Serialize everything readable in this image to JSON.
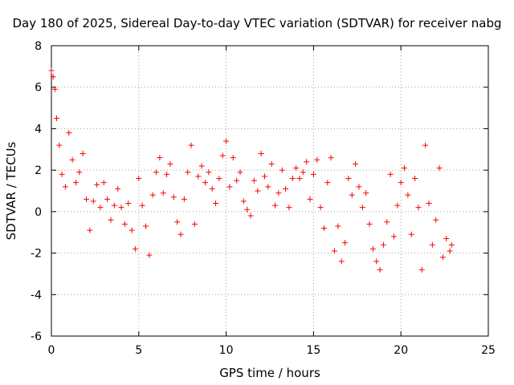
{
  "chart_data": {
    "type": "scatter",
    "title": "Day 180 of 2025, Sidereal Day-to-day VTEC variation (SDTVAR) for receiver nabg",
    "xlabel": "GPS time / hours",
    "ylabel": "SDTVAR / TECUs",
    "xlim": [
      0,
      25
    ],
    "ylim": [
      -6,
      8
    ],
    "xticks": [
      0,
      5,
      10,
      15,
      20,
      25
    ],
    "yticks": [
      -6,
      -4,
      -2,
      0,
      2,
      4,
      6,
      8
    ],
    "grid": true,
    "marker": "+",
    "color": "#ff0000",
    "series": [
      {
        "name": "SDTVAR",
        "x": [
          0.0,
          0.1,
          0.2,
          0.3,
          0.45,
          0.6,
          0.8,
          1.0,
          1.2,
          1.4,
          1.6,
          1.8,
          2.0,
          2.2,
          2.4,
          2.6,
          2.8,
          3.0,
          3.2,
          3.4,
          3.6,
          3.8,
          4.0,
          4.2,
          4.4,
          4.6,
          4.8,
          5.0,
          5.2,
          5.4,
          5.6,
          5.8,
          6.0,
          6.2,
          6.4,
          6.6,
          6.8,
          7.0,
          7.2,
          7.4,
          7.6,
          7.8,
          8.0,
          8.2,
          8.4,
          8.6,
          8.8,
          9.0,
          9.2,
          9.4,
          9.6,
          9.8,
          10.0,
          10.2,
          10.4,
          10.6,
          10.8,
          11.0,
          11.2,
          11.4,
          11.6,
          11.8,
          12.0,
          12.2,
          12.4,
          12.6,
          12.8,
          13.0,
          13.2,
          13.4,
          13.6,
          13.8,
          14.0,
          14.2,
          14.4,
          14.6,
          14.8,
          15.0,
          15.2,
          15.4,
          15.6,
          15.8,
          16.0,
          16.2,
          16.4,
          16.6,
          16.8,
          17.0,
          17.2,
          17.4,
          17.6,
          17.8,
          18.0,
          18.2,
          18.4,
          18.6,
          18.8,
          19.0,
          19.2,
          19.4,
          19.6,
          19.8,
          20.0,
          20.2,
          20.4,
          20.6,
          20.8,
          21.0,
          21.2,
          21.4,
          21.6,
          21.8,
          22.0,
          22.2,
          22.4,
          22.6,
          22.8,
          22.9
        ],
        "y": [
          6.8,
          6.5,
          5.9,
          4.5,
          3.2,
          1.8,
          1.2,
          3.8,
          2.5,
          1.4,
          1.9,
          2.8,
          0.6,
          -0.9,
          0.5,
          1.3,
          0.2,
          1.4,
          0.6,
          -0.4,
          0.3,
          1.1,
          0.2,
          -0.6,
          0.4,
          -0.9,
          -1.8,
          1.6,
          0.3,
          -0.7,
          -2.1,
          0.8,
          1.9,
          2.6,
          0.9,
          1.8,
          2.3,
          0.7,
          -0.5,
          -1.1,
          0.6,
          1.9,
          3.2,
          -0.6,
          1.7,
          2.2,
          1.4,
          1.9,
          1.1,
          0.4,
          1.6,
          2.7,
          3.4,
          1.2,
          2.6,
          1.5,
          1.9,
          0.5,
          0.1,
          -0.2,
          1.5,
          1.0,
          2.8,
          1.7,
          1.2,
          2.3,
          0.3,
          0.9,
          2.0,
          1.1,
          0.2,
          1.6,
          2.1,
          1.6,
          1.9,
          2.4,
          0.6,
          1.8,
          2.5,
          0.2,
          -0.8,
          1.4,
          2.6,
          -1.9,
          -0.7,
          -2.4,
          -1.5,
          1.6,
          0.8,
          2.3,
          1.2,
          0.2,
          0.9,
          -0.6,
          -1.8,
          -2.4,
          -2.8,
          -1.6,
          -0.5,
          1.8,
          -1.2,
          0.3,
          1.4,
          2.1,
          0.8,
          -1.1,
          1.6,
          0.2,
          -2.8,
          3.2,
          0.4,
          -1.6,
          -0.4,
          2.1,
          -2.2,
          -1.3,
          -1.9,
          -1.6
        ]
      }
    ]
  }
}
